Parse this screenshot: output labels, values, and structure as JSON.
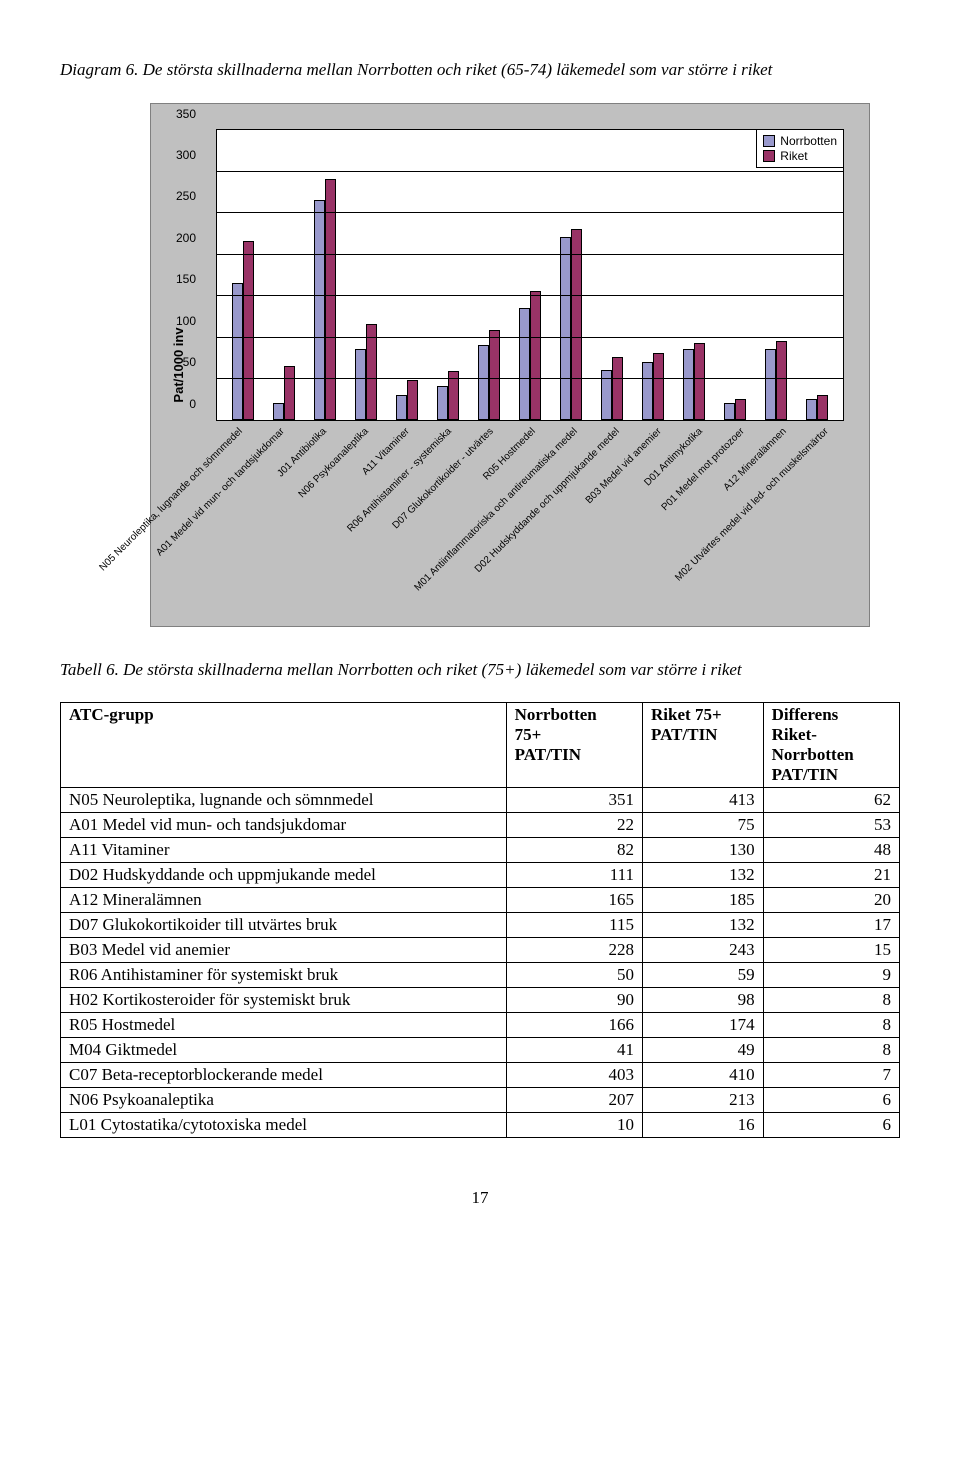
{
  "diagram_caption": "Diagram 6. De största skillnaderna mellan Norrbotten och riket (65-74) läkemedel som var större i riket",
  "chart": {
    "type": "bar",
    "y_axis_label": "Pat/1000 inv",
    "ylim": [
      0,
      350
    ],
    "ytick_step": 50,
    "background_color": "#c0c0c0",
    "plot_background": "#ffffff",
    "grid_color": "#000000",
    "bar_colors": {
      "norrbotten": "#9999cc",
      "riket": "#993366"
    },
    "legend": [
      "Norrbotten",
      "Riket"
    ],
    "categories": [
      "N05 Neuroleptika, lugnande och sömnmedel",
      "A01 Medel vid mun- och tandsjukdomar",
      "J01 Antibiotika",
      "N06 Psykoanaleptika",
      "A11 Vitaminer",
      "R06 Antihistaminer - systemiska",
      "D07 Glukokortikoider - utvärtes",
      "R05 Hostmedel",
      "M01 Antiinflammatoriska och antireumatiska medel",
      "D02 Hudskyddande och uppmjukande medel",
      "B03 Medel vid anemier",
      "D01 Antimykotika",
      "P01 Medel mot protozoer",
      "A12 Mineralämnen",
      "M02 Utvärtes medel vid led- och muskelsmärtor"
    ],
    "series": {
      "norrbotten": [
        165,
        20,
        265,
        85,
        30,
        40,
        90,
        135,
        220,
        60,
        70,
        85,
        20,
        85,
        25
      ],
      "riket": [
        215,
        65,
        290,
        115,
        48,
        58,
        108,
        155,
        230,
        75,
        80,
        92,
        25,
        95,
        30
      ]
    }
  },
  "table_caption": "Tabell 6. De största skillnaderna mellan Norrbotten och riket (75+) läkemedel som var större i riket",
  "table": {
    "columns": [
      "ATC-grupp",
      "Norrbotten 75+ PAT/TIN",
      "Riket 75+ PAT/TIN",
      "Differens Riket-Norrbotten PAT/TIN"
    ],
    "rows": [
      [
        "N05 Neuroleptika, lugnande och sömnmedel",
        351,
        413,
        62
      ],
      [
        "A01 Medel vid mun- och tandsjukdomar",
        22,
        75,
        53
      ],
      [
        "A11 Vitaminer",
        82,
        130,
        48
      ],
      [
        "D02 Hudskyddande och uppmjukande medel",
        111,
        132,
        21
      ],
      [
        "A12 Mineralämnen",
        165,
        185,
        20
      ],
      [
        "D07 Glukokortikoider till utvärtes bruk",
        115,
        132,
        17
      ],
      [
        "B03 Medel vid anemier",
        228,
        243,
        15
      ],
      [
        "R06 Antihistaminer för systemiskt bruk",
        50,
        59,
        9
      ],
      [
        "H02 Kortikosteroider för systemiskt bruk",
        90,
        98,
        8
      ],
      [
        "R05 Hostmedel",
        166,
        174,
        8
      ],
      [
        "M04 Giktmedel",
        41,
        49,
        8
      ],
      [
        "C07 Beta-receptorblockerande medel",
        403,
        410,
        7
      ],
      [
        "N06 Psykoanaleptika",
        207,
        213,
        6
      ],
      [
        "L01 Cytostatika/cytotoxiska medel",
        10,
        16,
        6
      ]
    ]
  },
  "page_number": "17"
}
